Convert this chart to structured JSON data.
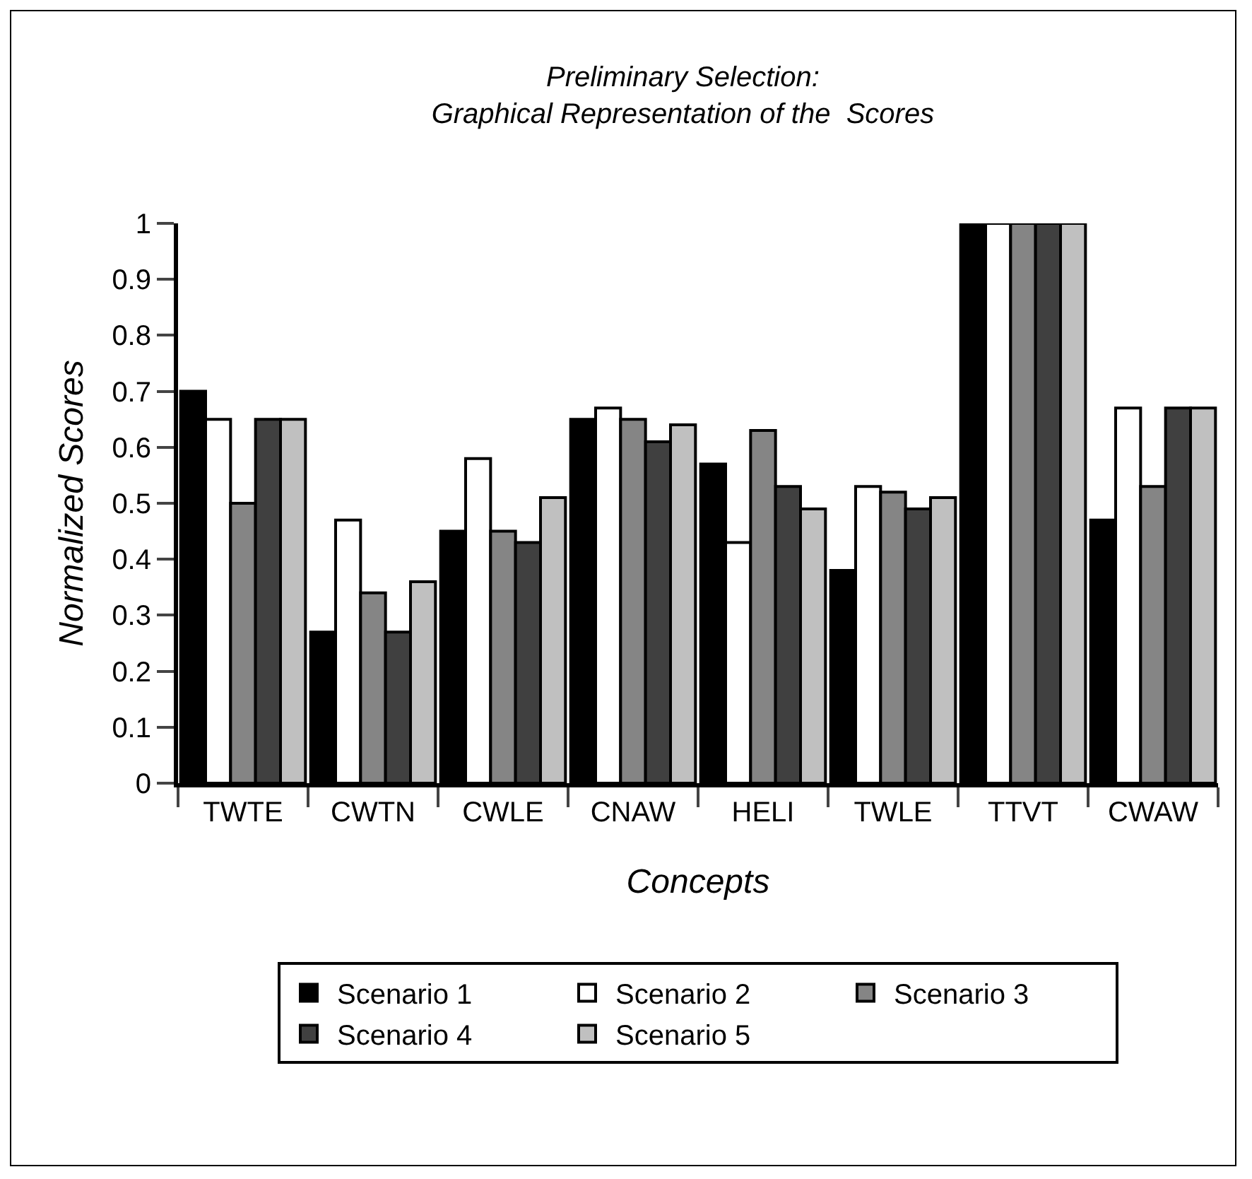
{
  "chart_data": {
    "type": "bar",
    "title": "Preliminary Selection:\nGraphical Representation of the  Scores",
    "xlabel": "Concepts",
    "ylabel": "Normalized Scores",
    "categories": [
      "TWTE",
      "CWTN",
      "CWLE",
      "CNAW",
      "HELI",
      "TWLE",
      "TTVT",
      "CWAW"
    ],
    "series": [
      {
        "name": "Scenario 1",
        "color": "#000000",
        "values": [
          0.7,
          0.27,
          0.45,
          0.65,
          0.57,
          0.38,
          1,
          0.47
        ]
      },
      {
        "name": "Scenario 2",
        "color": "#ffffff",
        "values": [
          0.65,
          0.47,
          0.58,
          0.67,
          0.43,
          0.53,
          1,
          0.67
        ]
      },
      {
        "name": "Scenario 3",
        "color": "#858585",
        "values": [
          0.5,
          0.34,
          0.45,
          0.65,
          0.63,
          0.52,
          1,
          0.53
        ]
      },
      {
        "name": "Scenario 4",
        "color": "#404040",
        "values": [
          0.65,
          0.27,
          0.43,
          0.61,
          0.53,
          0.49,
          1,
          0.67
        ]
      },
      {
        "name": "Scenario 5",
        "color": "#c0c0c0",
        "values": [
          0.65,
          0.36,
          0.51,
          0.64,
          0.49,
          0.51,
          1,
          0.67
        ]
      }
    ],
    "ylim": [
      0,
      1
    ],
    "yticks": [
      0,
      0.1,
      0.2,
      0.3,
      0.4,
      0.5,
      0.6,
      0.7,
      0.8,
      0.9,
      1
    ],
    "grid": false,
    "legend": "bottom"
  }
}
